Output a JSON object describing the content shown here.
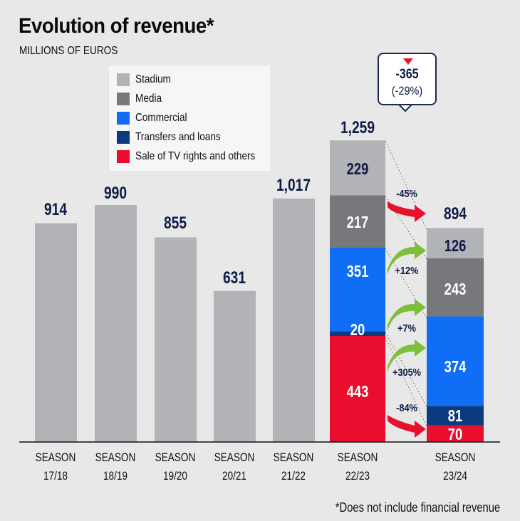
{
  "header": {
    "title": "Evolution of revenue*",
    "subtitle": "MILLIONS OF EUROS"
  },
  "legend": [
    {
      "label": "Stadium",
      "color": "#b1b3b6"
    },
    {
      "label": "Media",
      "color": "#77787b"
    },
    {
      "label": "Commercial",
      "color": "#0f6ef5"
    },
    {
      "label": "Transfers and loans",
      "color": "#0b3a7e"
    },
    {
      "label": "Sale of TV rights and others",
      "color": "#ea0e2e"
    }
  ],
  "callout": {
    "value": "-365",
    "percent": "(-29%)"
  },
  "footnote": "*Does not include financial revenue",
  "chart_data": {
    "type": "bar",
    "title": "Evolution of revenue*",
    "subtitle": "MILLIONS OF EUROS",
    "xlabel": "",
    "ylabel": "",
    "ylim": [
      0,
      1300
    ],
    "grid": false,
    "legend_position": "top-left",
    "categories": [
      "SEASON 17/18",
      "SEASON 18/19",
      "SEASON 19/20",
      "SEASON 20/21",
      "SEASON 21/22",
      "SEASON 22/23",
      "SEASON 23/24"
    ],
    "category_lines": [
      [
        "SEASON",
        "17/18"
      ],
      [
        "SEASON",
        "18/19"
      ],
      [
        "SEASON",
        "19/20"
      ],
      [
        "SEASON",
        "20/21"
      ],
      [
        "SEASON",
        "21/22"
      ],
      [
        "SEASON",
        "22/23"
      ],
      [
        "SEASON",
        "23/24"
      ]
    ],
    "totals": [
      914,
      990,
      855,
      631,
      1017,
      1259,
      894
    ],
    "total_labels": [
      "914",
      "990",
      "855",
      "631",
      "1,017",
      "1,259",
      "894"
    ],
    "series": [
      {
        "name": "Stadium",
        "values": [
          null,
          null,
          null,
          null,
          null,
          229,
          126
        ]
      },
      {
        "name": "Media",
        "values": [
          null,
          null,
          null,
          null,
          null,
          217,
          243
        ]
      },
      {
        "name": "Commercial",
        "values": [
          null,
          null,
          null,
          null,
          null,
          351,
          374
        ]
      },
      {
        "name": "Transfers and loans",
        "values": [
          null,
          null,
          null,
          null,
          null,
          20,
          81
        ]
      },
      {
        "name": "Sale of TV rights and others",
        "values": [
          null,
          null,
          null,
          null,
          null,
          443,
          70
        ]
      }
    ],
    "changes": [
      {
        "series": "Stadium",
        "label": "-45%",
        "direction": "down"
      },
      {
        "series": "Media",
        "label": "+12%",
        "direction": "up"
      },
      {
        "series": "Commercial",
        "label": "+7%",
        "direction": "up"
      },
      {
        "series": "Transfers and loans",
        "label": "+305%",
        "direction": "up"
      },
      {
        "series": "Sale of TV rights and others",
        "label": "-84%",
        "direction": "down"
      }
    ],
    "total_change": {
      "value": -365,
      "percent": -29
    },
    "colors": {
      "total_bar": "#b1b3b6",
      "label_dark": "#0e1b47",
      "label_light": "#ffffff",
      "arrow_up": "#7dbf3a",
      "arrow_down": "#e8112d"
    }
  }
}
